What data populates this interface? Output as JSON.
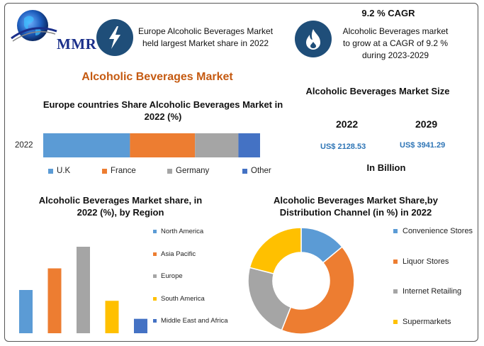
{
  "header": {
    "logo_text": "MMR",
    "info1": "Europe Alcoholic Beverages Market held largest Market share in 2022",
    "cagr_title": "9.2 % CAGR",
    "cagr_text": "Alcoholic Beverages market to grow at a CAGR of 9.2 % during 2023-2029",
    "main_title": "Alcoholic Beverages Market",
    "lightning_icon": "lightning-icon",
    "flame_icon": "flame-icon"
  },
  "colors": {
    "blue": "#5b9bd5",
    "orange": "#ed7d31",
    "gray": "#a5a5a5",
    "dark_blue": "#4472c4",
    "yellow": "#ffc000",
    "title_orange": "#c55a11",
    "icon_navy": "#1f4e79",
    "value_blue": "#2e75b6"
  },
  "market_size": {
    "title": "Alcoholic Beverages Market Size",
    "years": [
      "2022",
      "2029"
    ],
    "values": [
      "US$ 2128.53",
      "US$ 3941.29"
    ],
    "unit": "In Billion"
  },
  "chart_data": [
    {
      "type": "bar",
      "orientation": "horizontal-stacked",
      "title": "Europe countries Share Alcoholic Beverages Market in 2022 (%)",
      "categories": [
        "2022"
      ],
      "series": [
        {
          "name": "U.K",
          "values": [
            40
          ]
        },
        {
          "name": "France",
          "values": [
            30
          ]
        },
        {
          "name": "Germany",
          "values": [
            20
          ]
        },
        {
          "name": "Other",
          "values": [
            10
          ]
        }
      ],
      "legend": "bottom"
    },
    {
      "type": "bar",
      "title": "Alcoholic Beverages Market share, in 2022 (%), by Region",
      "categories": [
        "North America",
        "Asia Pacific",
        "Europe",
        "South America",
        "Middle East and Africa"
      ],
      "values": [
        24,
        36,
        48,
        18,
        8
      ],
      "legend": "right"
    },
    {
      "type": "pie",
      "title": "Alcoholic Beverages Market Share,by Distribution Channel (in %) in 2022",
      "categories": [
        "Convenience Stores",
        "Liquor Stores",
        "Internet Retailing",
        "Supermarkets"
      ],
      "values": [
        14,
        42,
        23,
        21
      ],
      "legend": "right"
    }
  ]
}
